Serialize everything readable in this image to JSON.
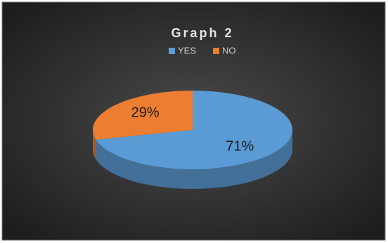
{
  "chart_data": {
    "type": "pie",
    "title": "Graph 2",
    "categories": [
      "YES",
      "NO"
    ],
    "values": [
      71,
      29
    ],
    "value_labels": [
      "71%",
      "29%"
    ],
    "colors": [
      "#5b9bd5",
      "#ed7d31"
    ],
    "legend": "top"
  }
}
